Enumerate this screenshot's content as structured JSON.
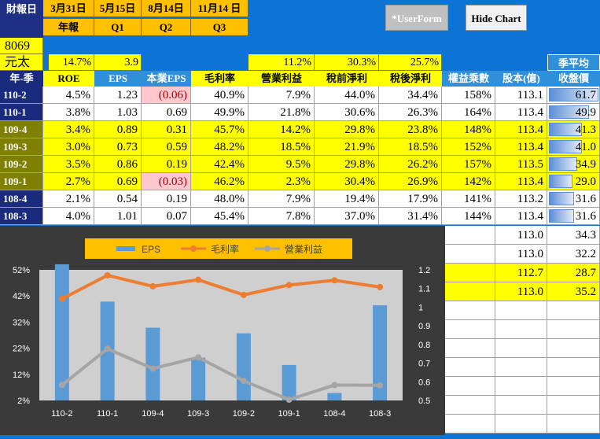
{
  "header": {
    "title": "財報日",
    "dates": [
      "3月31日",
      "5月15日",
      "8月14日",
      "11月14 日"
    ],
    "periods": [
      "年報",
      "Q1",
      "Q2",
      "Q3"
    ]
  },
  "buttons": {
    "userform": "*UserForm",
    "hide_chart": "Hide Chart"
  },
  "stock": {
    "code": "8069",
    "name": "元太"
  },
  "summary": {
    "roe": "14.7%",
    "eps": "3.9",
    "op_margin": "11.2%",
    "pretax": "30.3%",
    "aftertax": "25.7%",
    "season_avg": "季平均"
  },
  "columns": [
    "年-季",
    "ROE",
    "EPS",
    "本業EPS",
    "毛利率",
    "營業利益",
    "稅前淨利",
    "稅後淨利",
    "權益乘數",
    "股本(億)",
    "收盤價"
  ],
  "rows": [
    {
      "q": "110-2",
      "roe": "4.5%",
      "eps": "1.23",
      "core": "(0.06)",
      "gm": "40.9%",
      "op": "7.9%",
      "pre": "44.0%",
      "post": "34.4%",
      "mult": "158%",
      "cap": "113.1",
      "price": "61.7",
      "style": "w",
      "neg": true
    },
    {
      "q": "110-1",
      "roe": "3.8%",
      "eps": "1.03",
      "core": "0.69",
      "gm": "49.9%",
      "op": "21.8%",
      "pre": "30.6%",
      "post": "26.3%",
      "mult": "164%",
      "cap": "113.4",
      "price": "49.9",
      "style": "w",
      "neg": false
    },
    {
      "q": "109-4",
      "roe": "3.4%",
      "eps": "0.89",
      "core": "0.31",
      "gm": "45.7%",
      "op": "14.2%",
      "pre": "29.8%",
      "post": "23.8%",
      "mult": "148%",
      "cap": "113.4",
      "price": "41.3",
      "style": "y",
      "neg": false
    },
    {
      "q": "109-3",
      "roe": "3.0%",
      "eps": "0.73",
      "core": "0.59",
      "gm": "48.2%",
      "op": "18.5%",
      "pre": "21.9%",
      "post": "18.5%",
      "mult": "152%",
      "cap": "113.4",
      "price": "41.0",
      "style": "y",
      "neg": false
    },
    {
      "q": "109-2",
      "roe": "3.5%",
      "eps": "0.86",
      "core": "0.19",
      "gm": "42.4%",
      "op": "9.5%",
      "pre": "29.8%",
      "post": "26.2%",
      "mult": "157%",
      "cap": "113.5",
      "price": "34.9",
      "style": "y",
      "neg": false
    },
    {
      "q": "109-1",
      "roe": "2.7%",
      "eps": "0.69",
      "core": "(0.03)",
      "gm": "46.2%",
      "op": "2.3%",
      "pre": "30.4%",
      "post": "26.9%",
      "mult": "142%",
      "cap": "113.4",
      "price": "29.0",
      "style": "y",
      "neg": true
    },
    {
      "q": "108-4",
      "roe": "2.1%",
      "eps": "0.54",
      "core": "0.19",
      "gm": "48.0%",
      "op": "7.9%",
      "pre": "19.4%",
      "post": "17.9%",
      "mult": "141%",
      "cap": "113.2",
      "price": "31.6",
      "style": "w",
      "neg": false
    },
    {
      "q": "108-3",
      "roe": "4.0%",
      "eps": "1.01",
      "core": "0.07",
      "gm": "45.4%",
      "op": "7.8%",
      "pre": "37.0%",
      "post": "31.4%",
      "mult": "144%",
      "cap": "113.4",
      "price": "31.6",
      "style": "w",
      "neg": false
    }
  ],
  "extra_rows": [
    {
      "cap": "113.0",
      "price": "34.3",
      "style": "w"
    },
    {
      "cap": "113.0",
      "price": "32.2",
      "style": "w"
    },
    {
      "cap": "112.7",
      "price": "28.7",
      "style": "y"
    },
    {
      "cap": "113.0",
      "price": "35.2",
      "style": "y"
    }
  ],
  "chart_data": {
    "type": "bar",
    "categories": [
      "110-2",
      "110-1",
      "109-4",
      "109-3",
      "109-2",
      "109-1",
      "108-4",
      "108-3"
    ],
    "series": [
      {
        "name": "EPS",
        "kind": "bar",
        "axis": "right",
        "color": "#5b9bd5",
        "values": [
          1.23,
          1.03,
          0.89,
          0.73,
          0.86,
          0.69,
          0.54,
          1.01
        ]
      },
      {
        "name": "毛利率",
        "kind": "line",
        "axis": "left",
        "color": "#ed7d31",
        "values": [
          40.9,
          49.9,
          45.7,
          48.2,
          42.4,
          46.2,
          48.0,
          45.4
        ]
      },
      {
        "name": "營業利益",
        "kind": "line",
        "axis": "left",
        "color": "#a5a5a5",
        "values": [
          7.9,
          21.8,
          14.2,
          18.5,
          9.5,
          2.3,
          7.9,
          7.8
        ]
      }
    ],
    "y_left_ticks": [
      "52%",
      "42%",
      "32%",
      "22%",
      "12%",
      "2%"
    ],
    "y_left_range": [
      2,
      52
    ],
    "y_right_ticks": [
      "1.2",
      "1.1",
      "1",
      "0.9",
      "0.8",
      "0.7",
      "0.6",
      "0.5"
    ],
    "y_right_range": [
      0.5,
      1.2
    ],
    "legend_position": "top"
  }
}
